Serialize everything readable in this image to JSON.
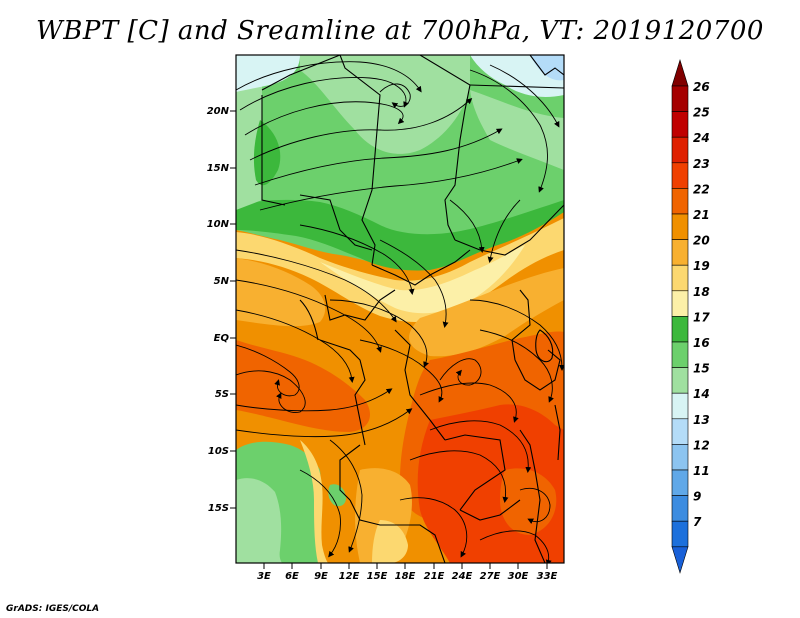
{
  "title": "WBPT [C] and Sreamline at 700hPa, VT: 2019120700",
  "credit": "GrADS: IGES/COLA",
  "lat_labels": [
    "20N",
    "15N",
    "10N",
    "5N",
    "EQ",
    "5S",
    "10S",
    "15S"
  ],
  "lon_labels": [
    "3E",
    "6E",
    "9E",
    "12E",
    "15E",
    "18E",
    "21E",
    "24E",
    "27E",
    "30E",
    "33E"
  ],
  "colorbar": {
    "levels": [
      "26",
      "25",
      "24",
      "23",
      "22",
      "21",
      "20",
      "19",
      "18",
      "17",
      "16",
      "15",
      "14",
      "13",
      "12",
      "11",
      "9",
      "7"
    ],
    "colors": [
      "#a50000",
      "#c00000",
      "#df2000",
      "#f04000",
      "#f06400",
      "#f09000",
      "#f8b030",
      "#fcd870",
      "#fcf0a8",
      "#3cb83c",
      "#6cd06c",
      "#a0e0a0",
      "#d8f4f4",
      "#b4dcf8",
      "#8cc4f0",
      "#60a8e8",
      "#3c8ce0",
      "#1c70dc"
    ],
    "top_arrow_color": "#800000",
    "bottom_arrow_color": "#1860d8"
  },
  "map_colors": {
    "cool_light": "#d8f4f4",
    "green_light": "#a0e0a0",
    "green_mid": "#6cd06c",
    "green_dark": "#3cb83c",
    "pale_yellow": "#fcf0a8",
    "yellow": "#fcd870",
    "light_orange": "#f8b030",
    "orange": "#f09000",
    "deep_orange": "#f06400",
    "red_orange": "#f04000"
  }
}
